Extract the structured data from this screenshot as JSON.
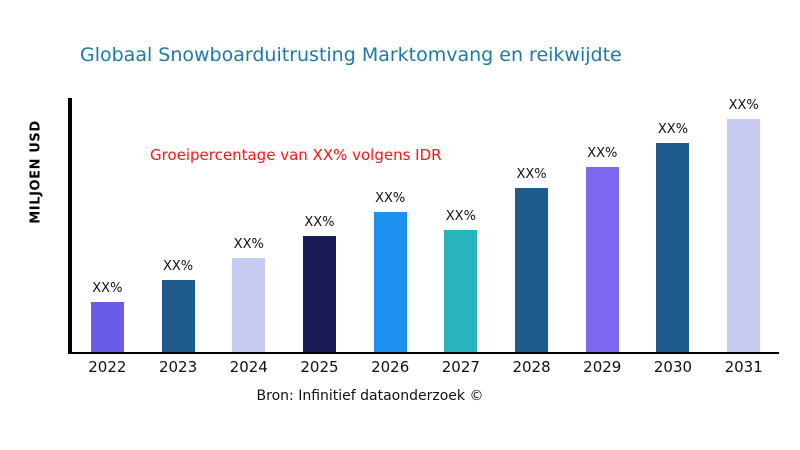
{
  "title": "Globaal Snowboarduitrusting Marktomvang en reikwijdte",
  "annotation": "Groeipercentage van XX% volgens IDR",
  "ylabel": "MILJOEN USD",
  "source": "Bron: Infinitief dataonderzoek ©",
  "colors": {
    "title": "#1c7aa8",
    "annotation": "#ff1414",
    "axis": "#000000",
    "background": "#ffffff"
  },
  "chart_data": {
    "type": "bar",
    "title": "Globaal Snowboarduitrusting Marktomvang en reikwijdte",
    "xlabel": "",
    "ylabel": "MILJOEN USD",
    "categories": [
      "2022",
      "2023",
      "2024",
      "2025",
      "2026",
      "2027",
      "2028",
      "2029",
      "2030",
      "2031"
    ],
    "values": [
      50,
      72,
      94,
      116,
      140,
      122,
      164,
      185,
      209,
      233
    ],
    "value_labels": [
      "XX%",
      "XX%",
      "XX%",
      "XX%",
      "XX%",
      "XX%",
      "XX%",
      "XX%",
      "XX%",
      "XX%"
    ],
    "bar_colors": [
      "#6b5ce7",
      "#1f5c8b",
      "#c8ccf2",
      "#1a1a55",
      "#1e90f0",
      "#27b4bc",
      "#1f5c8b",
      "#7b68ee",
      "#1f5c8b",
      "#c8ccf2"
    ],
    "ylim": [
      0,
      254
    ],
    "grid": false,
    "legend": false,
    "annotation": "Groeipercentage van XX% volgens IDR"
  }
}
